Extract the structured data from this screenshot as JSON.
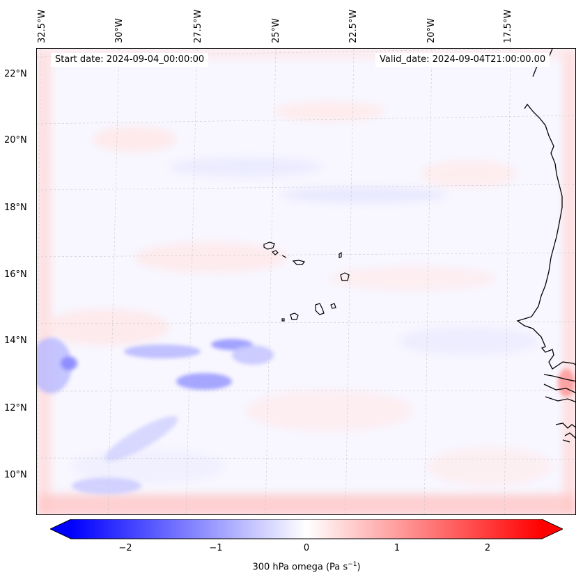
{
  "map": {
    "start_date": "Start date: 2024-09-04_00:00:00",
    "valid_date": "Valid_date: 2024-09-04T21:00:00.00",
    "longitude_labels": [
      "32.5°W",
      "30°W",
      "27.5°W",
      "25°W",
      "22.5°W",
      "20°W",
      "17.5°W"
    ],
    "latitude_labels": [
      "22°N",
      "20°N",
      "18°N",
      "16°N",
      "14°N",
      "12°N",
      "10°N"
    ]
  },
  "colorbar": {
    "ticks": [
      "−2",
      "−1",
      "0",
      "1",
      "2"
    ],
    "label": "300 hPa omega (Pa s",
    "label_exp": "−1",
    "label_end": ")",
    "min": -2.6,
    "max": 2.6,
    "colors": {
      "negative": "#0000ff",
      "neutral": "#ffffff",
      "positive": "#ff0000"
    }
  }
}
